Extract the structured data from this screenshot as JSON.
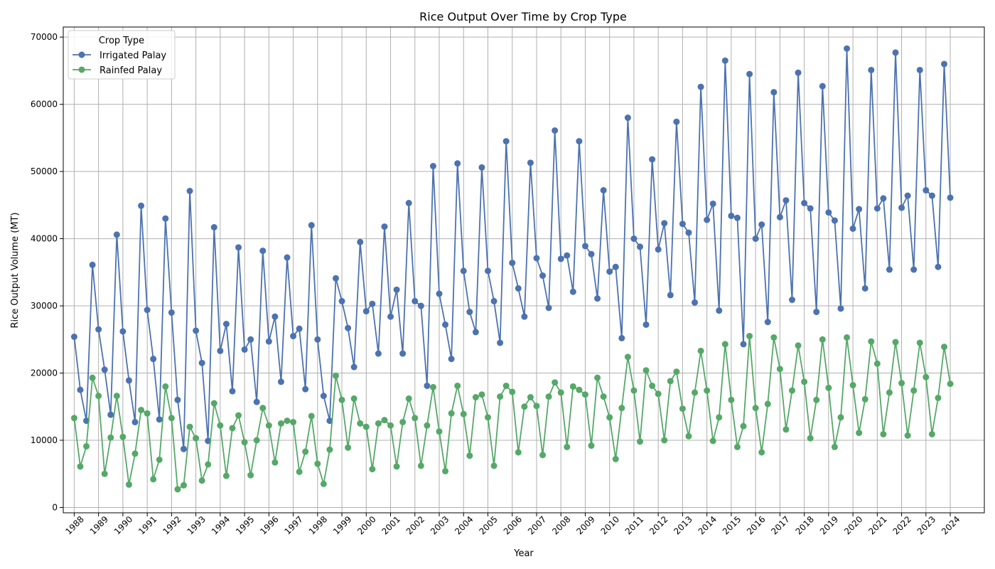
{
  "chart_data": {
    "type": "line",
    "title": "Rice Output Over Time by Crop Type",
    "xlabel": "Year",
    "ylabel": "Rice Output Volume (MT)",
    "x_tick_labels": [
      "1988",
      "1989",
      "1990",
      "1991",
      "1992",
      "1993",
      "1994",
      "1995",
      "1996",
      "1997",
      "1998",
      "1999",
      "2000",
      "2001",
      "2002",
      "2003",
      "2004",
      "2005",
      "2006",
      "2007",
      "2008",
      "2009",
      "2010",
      "2011",
      "2012",
      "2013",
      "2014",
      "2015",
      "2016",
      "2017",
      "2018",
      "2019",
      "2020",
      "2021",
      "2022",
      "2023",
      "2024"
    ],
    "x_start_year": 1988,
    "points_per_year": 4,
    "xlim": [
      1987.55,
      2025.4
    ],
    "ylim": [
      -800,
      71500
    ],
    "y_ticks": [
      0,
      10000,
      20000,
      30000,
      40000,
      50000,
      60000,
      70000
    ],
    "grid": true,
    "legend": {
      "title": "Crop Type",
      "position": "top-left"
    },
    "series": [
      {
        "name": "Irrigated Palay",
        "color": "#4c72b0",
        "values": [
          25400,
          17500,
          12900,
          36100,
          26500,
          20500,
          13800,
          40600,
          26200,
          18900,
          12700,
          44900,
          29400,
          22100,
          13100,
          43000,
          29000,
          16000,
          8700,
          47100,
          26300,
          21500,
          9900,
          41700,
          23300,
          27300,
          17300,
          38700,
          23500,
          25000,
          15700,
          38200,
          24700,
          28400,
          18700,
          37200,
          25500,
          26600,
          17600,
          42000,
          25000,
          16600,
          12900,
          34100,
          30700,
          26700,
          20900,
          39500,
          29200,
          30300,
          22900,
          41800,
          28400,
          32400,
          22900,
          45300,
          30700,
          30000,
          18100,
          50800,
          31800,
          27200,
          22100,
          51200,
          35200,
          29100,
          26100,
          50600,
          35200,
          30700,
          24500,
          54500,
          36400,
          32600,
          28400,
          51300,
          37100,
          34500,
          29700,
          56100,
          37000,
          37500,
          32100,
          54500,
          38900,
          37700,
          31100,
          47200,
          35100,
          35800,
          25200,
          58000,
          40000,
          38800,
          27200,
          51800,
          38400,
          42300,
          31600,
          57400,
          42200,
          40900,
          30500,
          62600,
          42800,
          45200,
          29300,
          66500,
          43400,
          43100,
          24300,
          64500,
          40000,
          42100,
          27600,
          61800,
          43200,
          45700,
          30900,
          64700,
          45300,
          44500,
          29100,
          62700,
          43900,
          42700,
          29600,
          68300,
          41500,
          44400,
          32600,
          65100,
          44500,
          46000,
          35400,
          67700,
          44600,
          46400,
          35400,
          65100,
          47200,
          46400,
          35800,
          66000,
          46100
        ]
      },
      {
        "name": "Rainfed Palay",
        "color": "#55a868",
        "values": [
          13300,
          6100,
          9100,
          19300,
          16600,
          5000,
          10400,
          16600,
          10500,
          3400,
          8000,
          14500,
          14000,
          4200,
          7100,
          18000,
          13300,
          2700,
          3300,
          12000,
          10300,
          4000,
          6400,
          15500,
          12200,
          4700,
          11800,
          13700,
          9700,
          4800,
          10000,
          14800,
          12200,
          6700,
          12500,
          12900,
          12700,
          5300,
          8300,
          13600,
          6500,
          3500,
          8600,
          19600,
          16000,
          8900,
          16200,
          12500,
          12000,
          5700,
          12500,
          13000,
          12200,
          6100,
          12700,
          16200,
          13300,
          6200,
          12200,
          17900,
          11300,
          5400,
          14000,
          18100,
          13900,
          7700,
          16400,
          16800,
          13400,
          6200,
          16500,
          18100,
          17200,
          8200,
          15000,
          16400,
          15100,
          7800,
          16500,
          18600,
          17100,
          9000,
          18000,
          17500,
          16800,
          9200,
          19300,
          16500,
          13400,
          7200,
          14800,
          22400,
          17400,
          9800,
          20400,
          18100,
          16900,
          10000,
          18800,
          20200,
          14700,
          10600,
          17100,
          23300,
          17400,
          9900,
          13400,
          24300,
          16000,
          9000,
          12100,
          25500,
          14800,
          8200,
          15400,
          25300,
          20600,
          11600,
          17400,
          24100,
          18700,
          10300,
          16000,
          25000,
          17800,
          9000,
          13400,
          25300,
          18200,
          11100,
          16100,
          24700,
          21400,
          10900,
          17100,
          24600,
          18500,
          10700,
          17400,
          24500,
          19400,
          10900,
          16300,
          23900,
          18400
        ]
      }
    ]
  }
}
